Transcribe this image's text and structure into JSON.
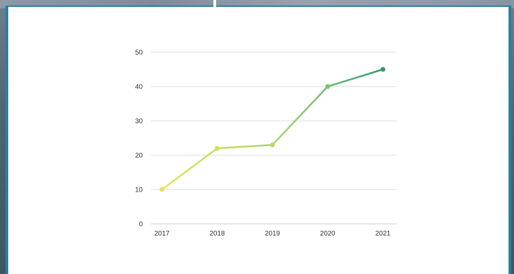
{
  "chart_data": {
    "type": "line",
    "title": "",
    "xlabel": "",
    "ylabel": "",
    "categories": [
      "2017",
      "2018",
      "2019",
      "2020",
      "2021"
    ],
    "series": [
      {
        "values": [
          10,
          22,
          23,
          40,
          45
        ]
      }
    ],
    "ylim": [
      0,
      50
    ],
    "yticks": [
      "0",
      "10",
      "20",
      "30",
      "40",
      "50"
    ],
    "grid": true,
    "legend": "none",
    "colors": {
      "gradient_start": "#e8e25a",
      "gradient_mid": "#9fd46a",
      "gradient_end": "#2f9b73",
      "grid": "#dddddd"
    }
  }
}
